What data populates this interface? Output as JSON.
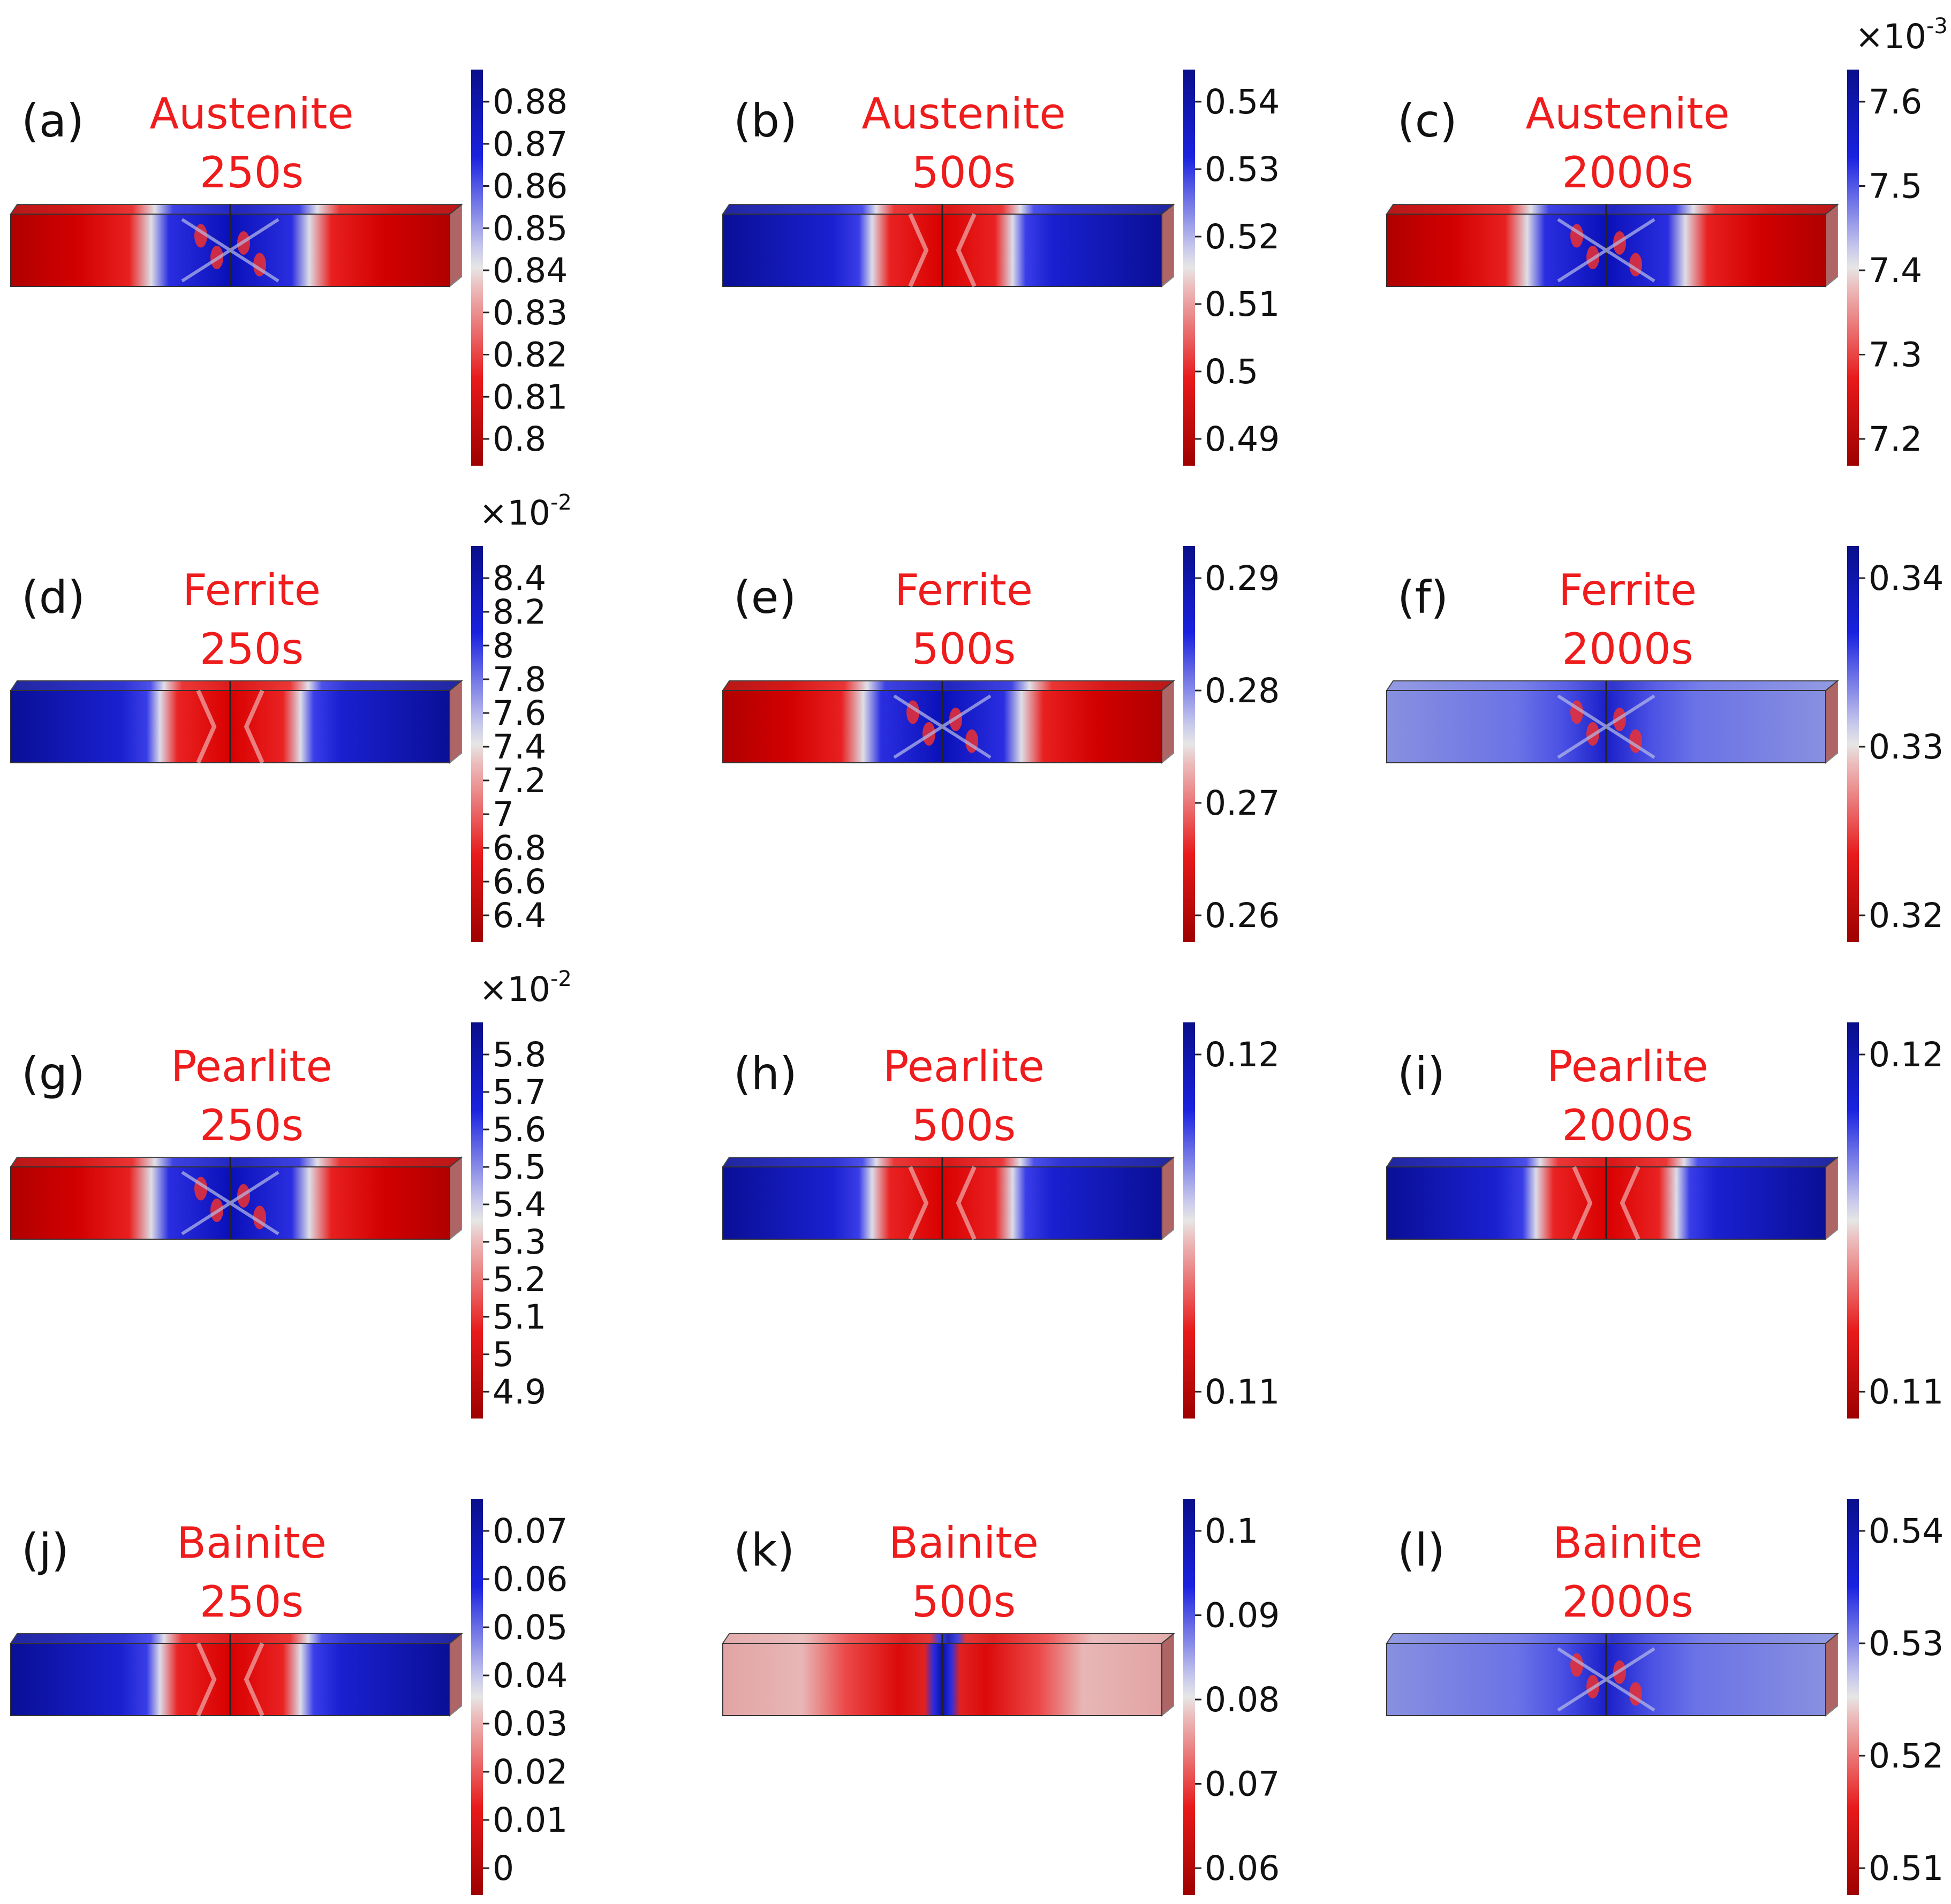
{
  "figure": {
    "panels": [
      {
        "id": "a",
        "label": "(a)",
        "phase": "Austenite",
        "time": "250s",
        "pattern": "center-blue",
        "ticks": [
          "0.88",
          "0.87",
          "0.86",
          "0.85",
          "0.84",
          "0.83",
          "0.82",
          "0.81",
          "0.8"
        ],
        "multiplier": null
      },
      {
        "id": "b",
        "label": "(b)",
        "phase": "Austenite",
        "time": "500s",
        "pattern": "center-red-simple",
        "ticks": [
          "0.54",
          "0.53",
          "0.52",
          "0.51",
          "0.5",
          "0.49"
        ],
        "multiplier": null
      },
      {
        "id": "c",
        "label": "(c)",
        "phase": "Austenite",
        "time": "2000s",
        "pattern": "center-blue",
        "ticks": [
          "7.6",
          "7.5",
          "7.4",
          "7.3",
          "7.2"
        ],
        "multiplier": {
          "base": "×10",
          "exp": "-3"
        }
      },
      {
        "id": "d",
        "label": "(d)",
        "phase": "Ferrite",
        "time": "250s",
        "pattern": "center-red-simple",
        "ticks": [
          "8.4",
          "8.2",
          "8",
          "7.8",
          "7.6",
          "7.4",
          "7.2",
          "7",
          "6.8",
          "6.6",
          "6.4"
        ],
        "multiplier": {
          "base": "×10",
          "exp": "-2"
        }
      },
      {
        "id": "e",
        "label": "(e)",
        "phase": "Ferrite",
        "time": "500s",
        "pattern": "center-blue",
        "ticks": [
          "0.29",
          "0.28",
          "0.27",
          "0.26"
        ],
        "multiplier": null
      },
      {
        "id": "f",
        "label": "(f)",
        "phase": "Ferrite",
        "time": "2000s",
        "pattern": "light-blue",
        "ticks": [
          "0.34",
          "0.33",
          "0.32"
        ],
        "multiplier": null
      },
      {
        "id": "g",
        "label": "(g)",
        "phase": "Pearlite",
        "time": "250s",
        "pattern": "center-blue",
        "ticks": [
          "5.8",
          "5.7",
          "5.6",
          "5.5",
          "5.4",
          "5.3",
          "5.2",
          "5.1",
          "5",
          "4.9"
        ],
        "multiplier": {
          "base": "×10",
          "exp": "-2"
        }
      },
      {
        "id": "h",
        "label": "(h)",
        "phase": "Pearlite",
        "time": "500s",
        "pattern": "center-red-simple",
        "ticks": [
          "0.12",
          "0.11"
        ],
        "multiplier": null
      },
      {
        "id": "i",
        "label": "(i)",
        "phase": "Pearlite",
        "time": "2000s",
        "pattern": "center-red-simple",
        "ticks": [
          "0.12",
          "0.11"
        ],
        "multiplier": null
      },
      {
        "id": "j",
        "label": "(j)",
        "phase": "Bainite",
        "time": "250s",
        "pattern": "center-red-simple",
        "ticks": [
          "0.07",
          "0.06",
          "0.05",
          "0.04",
          "0.03",
          "0.02",
          "0.01",
          "0"
        ],
        "multiplier": null
      },
      {
        "id": "k",
        "label": "(k)",
        "phase": "Bainite",
        "time": "500s",
        "pattern": "pink-red",
        "ticks": [
          "0.1",
          "0.09",
          "0.08",
          "0.07",
          "0.06"
        ],
        "multiplier": null
      },
      {
        "id": "l",
        "label": "(l)",
        "phase": "Bainite",
        "time": "2000s",
        "pattern": "light-blue",
        "ticks": [
          "0.54",
          "0.53",
          "0.52",
          "0.51"
        ],
        "multiplier": null
      }
    ],
    "colors": {
      "red": "#c40000",
      "blue": "#0a10b8",
      "mid": "#d9d9e6",
      "title": "#ee1c1c"
    }
  }
}
